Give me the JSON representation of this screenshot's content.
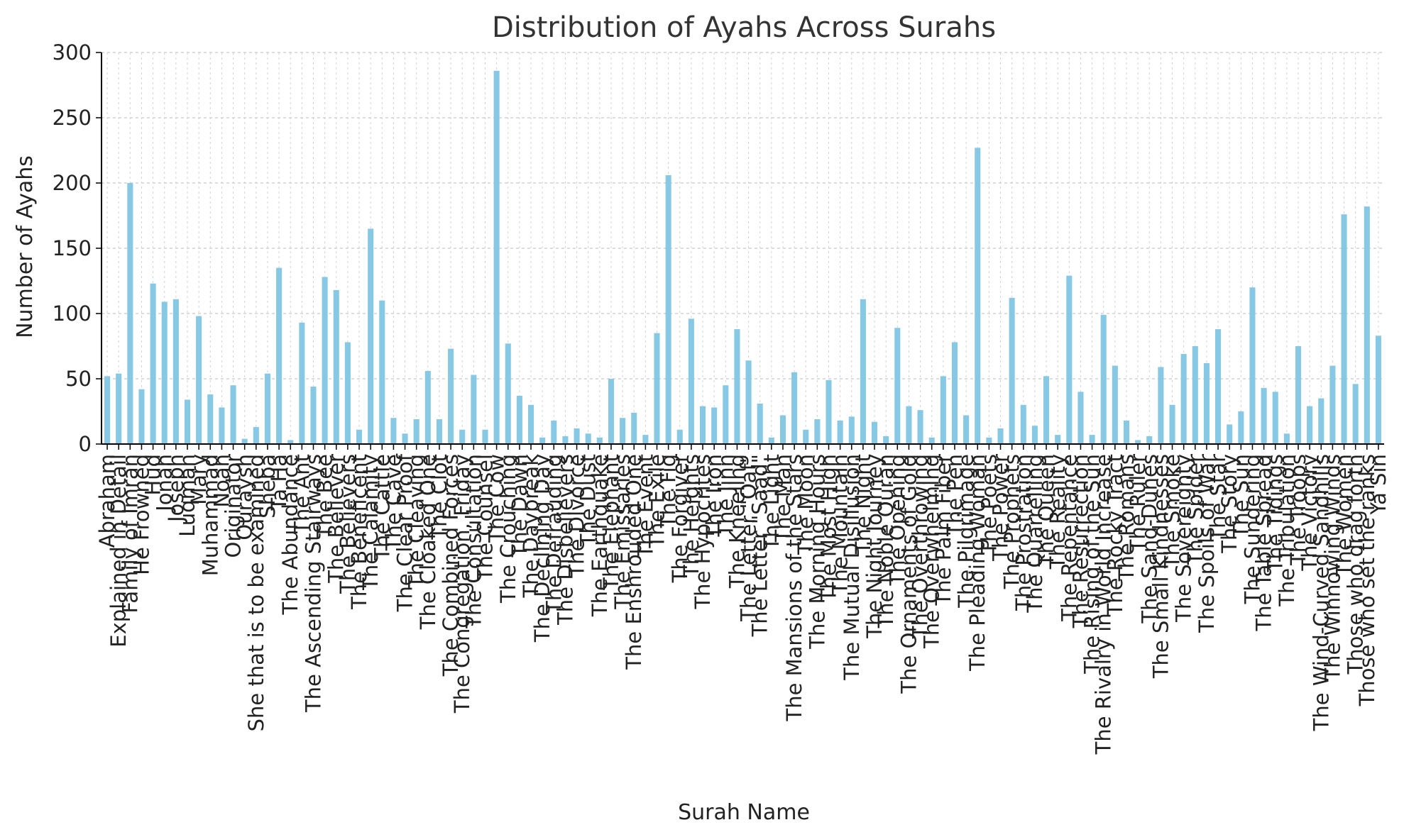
{
  "chart_data": {
    "type": "bar",
    "title": "Distribution of Ayahs Across Surahs",
    "xlabel": "Surah Name",
    "ylabel": "Number of Ayahs",
    "ylim": [
      0,
      300
    ],
    "yticks": [
      0,
      50,
      100,
      150,
      200,
      250,
      300
    ],
    "grid": true,
    "bar_color": "#87c8e4",
    "categories": [
      "Abraham",
      "Explained in Detail",
      "Family of Imran",
      "He Frowned",
      "Hud",
      "Jonah",
      "Joseph",
      "Luqman",
      "Mary",
      "Muhammad",
      "Noah",
      "Originator",
      "Quraysh",
      "She that is to be examined",
      "Sheba",
      "Ta Ha",
      "The Abundance",
      "The Ant",
      "The Ascending Stairways",
      "The Bee",
      "The Believer",
      "The Believers",
      "The Beneficent",
      "The Calamity",
      "The Cattle",
      "The Cave",
      "The Clear Proof",
      "The Cleaving",
      "The Cloaked One",
      "The Clot",
      "The Combined Forces",
      "The Congregation, Friday",
      "The Consultation",
      "The Counsel",
      "The Cow",
      "The Crouching",
      "The Dawn",
      "The Daybreak",
      "The Declining Day",
      "The Defrauding",
      "The Disbelievers",
      "The Divorce",
      "The Dust",
      "The Earthquake",
      "The Elephant",
      "The Emissaries",
      "The Enshrouded One",
      "The Event",
      "The Exile",
      "The Fig",
      "The Forgiver",
      "The Heights",
      "The Hypocrites",
      "The Iron",
      "The Jinn",
      "The Kneeling",
      "The Letter \"Qaf\"",
      "The Letter \"Saad\"",
      "The Light",
      "The Man",
      "The Mansions of the Stars",
      "The Moon",
      "The Morning Hours",
      "The Most High",
      "The Mountain",
      "The Mutual Disillusion",
      "The Night",
      "The Night Journey",
      "The Noble Quran",
      "The Opening",
      "The Ornaments of Gold",
      "The Overthrowing",
      "The Overwhelming",
      "The Palm Fiber",
      "The Pen",
      "The Pilgrimage",
      "The Pleading Woman",
      "The Poets",
      "The Power",
      "The Prophets",
      "The Prostration",
      "The Quarrelling",
      "The Queen",
      "The Reality",
      "The Repentance",
      "The Resurrection",
      "The Rising of the Sun",
      "The Rivalry in World Increase",
      "The Rocky Tract",
      "The Romans",
      "The Ruler",
      "The Sand-Dunes",
      "The Small Kindnesses",
      "The Smoke",
      "The Sovereignty",
      "The Spider",
      "The Spoils of War",
      "The Star",
      "The Story",
      "The Sun",
      "The Sundering",
      "The Table Spread",
      "The Tidings",
      "The Tribulation",
      "The Troops",
      "The Victory",
      "The Wind-Curved Sandhills",
      "The Winnowing Winds",
      "The Women",
      "Those who drag forth",
      "Those who set the ranks",
      "Ya Sin"
    ],
    "values": [
      52,
      54,
      200,
      42,
      123,
      109,
      111,
      34,
      98,
      38,
      28,
      45,
      4,
      13,
      54,
      135,
      3,
      93,
      44,
      128,
      118,
      78,
      11,
      165,
      110,
      20,
      8,
      19,
      56,
      19,
      73,
      11,
      53,
      11,
      286,
      77,
      37,
      30,
      5,
      18,
      6,
      12,
      8,
      5,
      50,
      20,
      24,
      7,
      85,
      206,
      11,
      96,
      29,
      28,
      45,
      88,
      64,
      31,
      5,
      22,
      55,
      11,
      19,
      49,
      18,
      21,
      111,
      17,
      6,
      89,
      29,
      26,
      5,
      52,
      78,
      22,
      227,
      5,
      12,
      112,
      30,
      14,
      52,
      7,
      129,
      40,
      7,
      99,
      60,
      18,
      3,
      6,
      59,
      30,
      69,
      75,
      62,
      88,
      15,
      25,
      120,
      43,
      40,
      8,
      75,
      29,
      35,
      60,
      176,
      46,
      182,
      83
    ]
  }
}
